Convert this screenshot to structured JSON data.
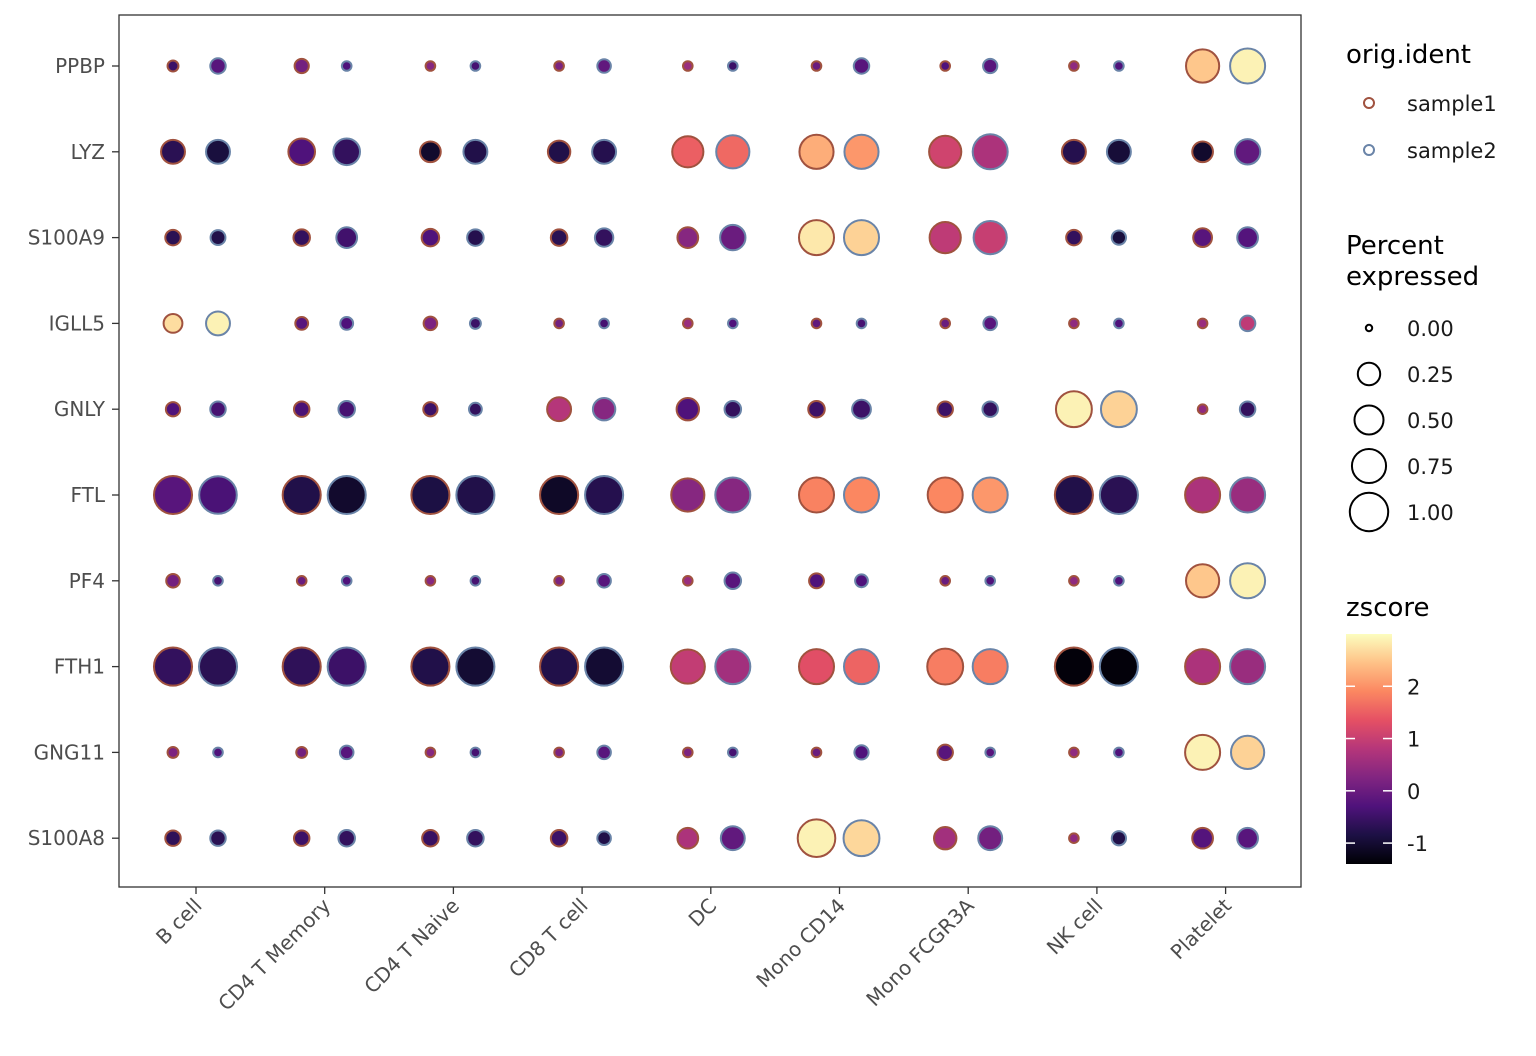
{
  "chart_data": {
    "type": "dotplot",
    "genes": [
      "PPBP",
      "LYZ",
      "S100A9",
      "IGLL5",
      "GNLY",
      "FTL",
      "PF4",
      "FTH1",
      "GNG11",
      "S100A8"
    ],
    "cell_types": [
      "B cell",
      "CD4 T Memory",
      "CD4 T Naive",
      "CD8 T cell",
      "DC",
      "Mono CD14",
      "Mono FCGR3A",
      "NK cell",
      "Platelet"
    ],
    "samples": [
      "sample1",
      "sample2"
    ],
    "sample_colors": {
      "sample1": "#a0523f",
      "sample2": "#6a84a8"
    },
    "points": {
      "PPBP": [
        [
          [
            0.02,
            -0.5
          ],
          [
            0.08,
            -0.2
          ]
        ],
        [
          [
            0.06,
            0.1
          ],
          [
            0.01,
            -0.3
          ]
        ],
        [
          [
            0.01,
            0.3
          ],
          [
            0.01,
            -0.4
          ]
        ],
        [
          [
            0.01,
            0.2
          ],
          [
            0.05,
            -0.1
          ]
        ],
        [
          [
            0.01,
            0.5
          ],
          [
            0.01,
            -0.5
          ]
        ],
        [
          [
            0.01,
            0.0
          ],
          [
            0.08,
            -0.2
          ]
        ],
        [
          [
            0.01,
            -0.3
          ],
          [
            0.06,
            -0.2
          ]
        ],
        [
          [
            0.01,
            0.4
          ],
          [
            0.01,
            -0.3
          ]
        ],
        [
          [
            0.7,
            2.5
          ],
          [
            0.8,
            2.9
          ]
        ]
      ],
      "LYZ": [
        [
          [
            0.3,
            -0.7
          ],
          [
            0.3,
            -0.9
          ]
        ],
        [
          [
            0.4,
            -0.3
          ],
          [
            0.4,
            -0.6
          ]
        ],
        [
          [
            0.2,
            -1.05
          ],
          [
            0.3,
            -0.8
          ]
        ],
        [
          [
            0.25,
            -0.8
          ],
          [
            0.3,
            -0.75
          ]
        ],
        [
          [
            0.6,
            1.5
          ],
          [
            0.7,
            1.6
          ]
        ],
        [
          [
            0.75,
            2.25
          ],
          [
            0.75,
            2.05
          ]
        ],
        [
          [
            0.65,
            1.1
          ],
          [
            0.8,
            0.7
          ]
        ],
        [
          [
            0.3,
            -0.75
          ],
          [
            0.3,
            -0.95
          ]
        ],
        [
          [
            0.2,
            -1.05
          ],
          [
            0.35,
            -0.1
          ]
        ]
      ],
      "S100A9": [
        [
          [
            0.08,
            -0.7
          ],
          [
            0.07,
            -0.8
          ]
        ],
        [
          [
            0.1,
            -0.6
          ],
          [
            0.2,
            -0.45
          ]
        ],
        [
          [
            0.12,
            -0.3
          ],
          [
            0.1,
            -0.75
          ]
        ],
        [
          [
            0.1,
            -0.7
          ],
          [
            0.14,
            -0.6
          ]
        ],
        [
          [
            0.2,
            0.3
          ],
          [
            0.35,
            0.0
          ]
        ],
        [
          [
            0.8,
            2.8
          ],
          [
            0.8,
            2.6
          ]
        ],
        [
          [
            0.6,
            0.9
          ],
          [
            0.7,
            1.0
          ]
        ],
        [
          [
            0.08,
            -0.6
          ],
          [
            0.06,
            -0.9
          ]
        ],
        [
          [
            0.15,
            -0.2
          ],
          [
            0.2,
            -0.25
          ]
        ]
      ],
      "IGLL5": [
        [
          [
            0.15,
            2.7
          ],
          [
            0.3,
            2.9
          ]
        ],
        [
          [
            0.04,
            -0.2
          ],
          [
            0.04,
            -0.3
          ]
        ],
        [
          [
            0.05,
            0.2
          ],
          [
            0.02,
            -0.5
          ]
        ],
        [
          [
            0.01,
            0.1
          ],
          [
            0.01,
            -0.4
          ]
        ],
        [
          [
            0.01,
            0.5
          ],
          [
            0.01,
            -0.3
          ]
        ],
        [
          [
            0.01,
            -0.1
          ],
          [
            0.01,
            -0.4
          ]
        ],
        [
          [
            0.01,
            0.0
          ],
          [
            0.05,
            -0.2
          ]
        ],
        [
          [
            0.01,
            0.4
          ],
          [
            0.01,
            -0.3
          ]
        ],
        [
          [
            0.01,
            0.5
          ],
          [
            0.08,
            0.9
          ]
        ]
      ],
      "GNLY": [
        [
          [
            0.06,
            -0.3
          ],
          [
            0.08,
            -0.4
          ]
        ],
        [
          [
            0.08,
            -0.35
          ],
          [
            0.1,
            -0.4
          ]
        ],
        [
          [
            0.06,
            -0.5
          ],
          [
            0.04,
            -0.6
          ]
        ],
        [
          [
            0.3,
            0.8
          ],
          [
            0.25,
            0.3
          ]
        ],
        [
          [
            0.25,
            -0.3
          ],
          [
            0.1,
            -0.6
          ]
        ],
        [
          [
            0.1,
            -0.5
          ],
          [
            0.15,
            -0.5
          ]
        ],
        [
          [
            0.08,
            -0.5
          ],
          [
            0.08,
            -0.6
          ]
        ],
        [
          [
            0.85,
            2.9
          ],
          [
            0.85,
            2.6
          ]
        ],
        [
          [
            0.01,
            0.4
          ],
          [
            0.08,
            -0.6
          ]
        ]
      ],
      "FTL": [
        [
          [
            0.98,
            -0.2
          ],
          [
            0.95,
            -0.35
          ]
        ],
        [
          [
            0.98,
            -0.8
          ],
          [
            0.98,
            -1.05
          ]
        ],
        [
          [
            0.98,
            -0.85
          ],
          [
            0.98,
            -0.8
          ]
        ],
        [
          [
            0.98,
            -1.1
          ],
          [
            0.98,
            -0.75
          ]
        ],
        [
          [
            0.7,
            0.3
          ],
          [
            0.8,
            0.3
          ]
        ],
        [
          [
            0.8,
            1.85
          ],
          [
            0.8,
            1.9
          ]
        ],
        [
          [
            0.8,
            1.9
          ],
          [
            0.8,
            2.05
          ]
        ],
        [
          [
            0.98,
            -0.8
          ],
          [
            0.98,
            -0.7
          ]
        ],
        [
          [
            0.8,
            0.7
          ],
          [
            0.8,
            0.5
          ]
        ]
      ],
      "PF4": [
        [
          [
            0.05,
            0.1
          ],
          [
            0.01,
            -0.4
          ]
        ],
        [
          [
            0.01,
            0.0
          ],
          [
            0.01,
            -0.3
          ]
        ],
        [
          [
            0.01,
            0.3
          ],
          [
            0.01,
            -0.4
          ]
        ],
        [
          [
            0.01,
            0.2
          ],
          [
            0.05,
            -0.2
          ]
        ],
        [
          [
            0.01,
            0.5
          ],
          [
            0.1,
            -0.2
          ]
        ],
        [
          [
            0.07,
            -0.3
          ],
          [
            0.04,
            -0.3
          ]
        ],
        [
          [
            0.01,
            0.0
          ],
          [
            0.01,
            -0.3
          ]
        ],
        [
          [
            0.01,
            0.4
          ],
          [
            0.01,
            -0.3
          ]
        ],
        [
          [
            0.7,
            2.5
          ],
          [
            0.8,
            2.9
          ]
        ]
      ],
      "FTH1": [
        [
          [
            0.98,
            -0.6
          ],
          [
            0.98,
            -0.7
          ]
        ],
        [
          [
            0.98,
            -0.65
          ],
          [
            0.98,
            -0.5
          ]
        ],
        [
          [
            0.98,
            -0.8
          ],
          [
            0.98,
            -1.0
          ]
        ],
        [
          [
            0.98,
            -0.8
          ],
          [
            0.98,
            -1.0
          ]
        ],
        [
          [
            0.75,
            0.95
          ],
          [
            0.8,
            0.6
          ]
        ],
        [
          [
            0.8,
            1.3
          ],
          [
            0.8,
            1.55
          ]
        ],
        [
          [
            0.85,
            1.8
          ],
          [
            0.8,
            1.8
          ]
        ],
        [
          [
            0.98,
            -1.35
          ],
          [
            0.98,
            -1.35
          ]
        ],
        [
          [
            0.8,
            0.7
          ],
          [
            0.8,
            0.5
          ]
        ]
      ],
      "GNG11": [
        [
          [
            0.02,
            0.2
          ],
          [
            0.01,
            -0.3
          ]
        ],
        [
          [
            0.02,
            0.1
          ],
          [
            0.05,
            -0.2
          ]
        ],
        [
          [
            0.01,
            0.3
          ],
          [
            0.01,
            -0.4
          ]
        ],
        [
          [
            0.01,
            0.2
          ],
          [
            0.05,
            -0.2
          ]
        ],
        [
          [
            0.01,
            0.2
          ],
          [
            0.01,
            -0.4
          ]
        ],
        [
          [
            0.01,
            0.0
          ],
          [
            0.06,
            -0.3
          ]
        ],
        [
          [
            0.08,
            -0.2
          ],
          [
            0.01,
            -0.2
          ]
        ],
        [
          [
            0.01,
            0.4
          ],
          [
            0.01,
            -0.3
          ]
        ],
        [
          [
            0.8,
            2.9
          ],
          [
            0.7,
            2.6
          ]
        ]
      ],
      "S100A8": [
        [
          [
            0.08,
            -0.65
          ],
          [
            0.08,
            -0.7
          ]
        ],
        [
          [
            0.08,
            -0.5
          ],
          [
            0.1,
            -0.6
          ]
        ],
        [
          [
            0.1,
            -0.55
          ],
          [
            0.1,
            -0.6
          ]
        ],
        [
          [
            0.1,
            -0.5
          ],
          [
            0.05,
            -0.8
          ]
        ],
        [
          [
            0.2,
            0.7
          ],
          [
            0.3,
            -0.1
          ]
        ],
        [
          [
            0.95,
            2.9
          ],
          [
            0.85,
            2.65
          ]
        ],
        [
          [
            0.25,
            0.6
          ],
          [
            0.3,
            0.1
          ]
        ],
        [
          [
            0.01,
            0.4
          ],
          [
            0.06,
            -0.8
          ]
        ],
        [
          [
            0.2,
            -0.25
          ],
          [
            0.2,
            -0.2
          ]
        ]
      ]
    },
    "size_legend": {
      "title": "Percent expressed",
      "title_lines": [
        "Percent",
        "expressed"
      ],
      "values": [
        0.0,
        0.25,
        0.5,
        0.75,
        1.0
      ],
      "labels": [
        "0.00",
        "0.25",
        "0.50",
        "0.75",
        "1.00"
      ]
    },
    "color_legend": {
      "title": "zscore",
      "range": [
        -1.4,
        3.0
      ],
      "ticks": [
        -1,
        0,
        1,
        2
      ],
      "tick_labels": [
        "-1",
        "0",
        "1",
        "2"
      ],
      "palette": "magma"
    },
    "sample_legend": {
      "title": "orig.ident",
      "labels": [
        "sample1",
        "sample2"
      ]
    }
  }
}
